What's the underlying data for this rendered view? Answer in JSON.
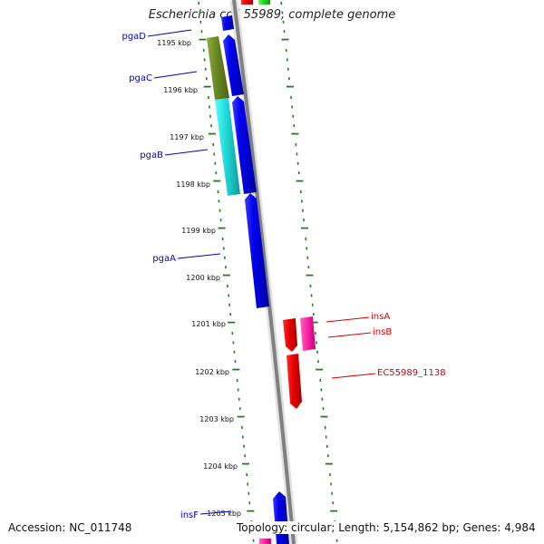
{
  "title": "Escherichia coli 55989, complete genome",
  "accession": "Accession: NC_011748",
  "summary": "Topology: circular; Length: 5,154,862 bp; Genes: 4,984",
  "colors": {
    "backbone": "#8a8a8a",
    "tick": "#1f7f1f",
    "gene_label_blue": "#0000cc",
    "gene_label_red": "#dd0000"
  },
  "scale_ticks": [
    "1195 kbp",
    "1196 kbp",
    "1197 kbp",
    "1198 kbp",
    "1199 kbp",
    "1200 kbp",
    "1201 kbp",
    "1202 kbp",
    "1203 kbp",
    "1204 kbp",
    "1205 kbp"
  ],
  "gene_labels": [
    {
      "name": "pgaD",
      "color": "#0000cc"
    },
    {
      "name": "pgaC",
      "color": "#0000cc"
    },
    {
      "name": "pgaB",
      "color": "#0000cc"
    },
    {
      "name": "pgaA",
      "color": "#0000cc"
    },
    {
      "name": "insA",
      "color": "#dd0000"
    },
    {
      "name": "insB",
      "color": "#dd0000"
    },
    {
      "name": "EC55989_1138",
      "color": "#dd0000"
    },
    {
      "name": "insF",
      "color": "#0000cc"
    }
  ]
}
